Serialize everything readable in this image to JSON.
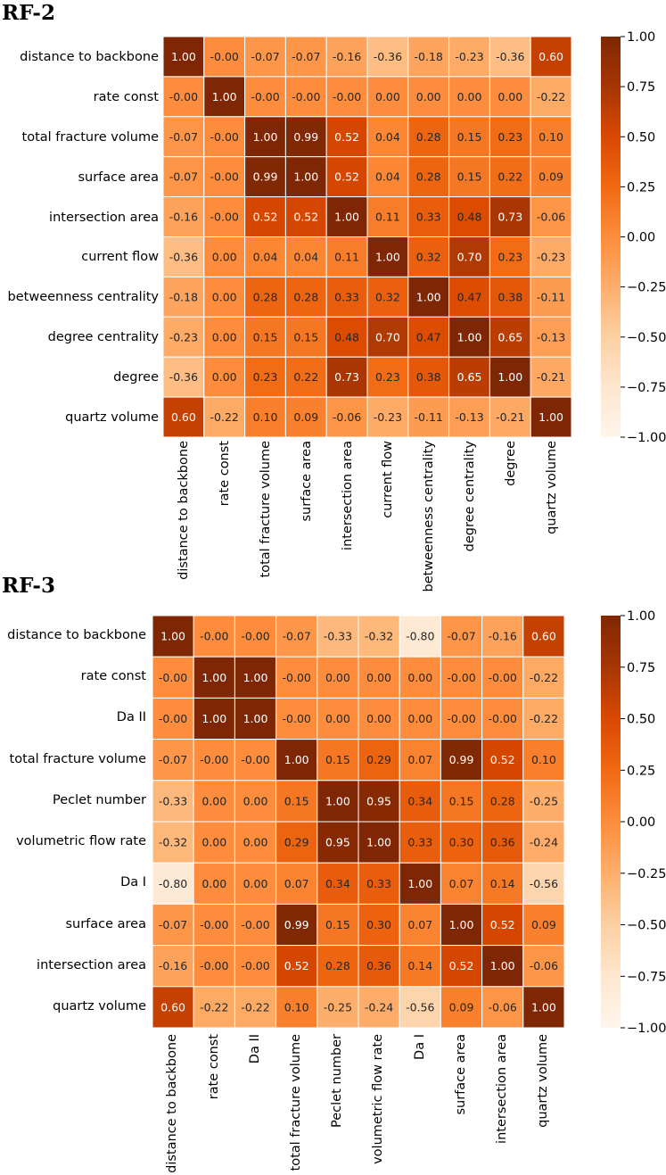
{
  "chart_data": [
    {
      "type": "heatmap",
      "title": "RF-2",
      "labels": [
        "distance to backbone",
        "rate const",
        "total fracture volume",
        "surface area",
        "intersection area",
        "current flow",
        "betweenness centrality",
        "degree centrality",
        "degree",
        "quartz volume"
      ],
      "values": [
        [
          1.0,
          -0.0,
          -0.07,
          -0.07,
          -0.16,
          -0.36,
          -0.18,
          -0.23,
          -0.36,
          0.6
        ],
        [
          -0.0,
          1.0,
          -0.0,
          -0.0,
          -0.0,
          0.0,
          0.0,
          0.0,
          0.0,
          -0.22
        ],
        [
          -0.07,
          -0.0,
          1.0,
          0.99,
          0.52,
          0.04,
          0.28,
          0.15,
          0.23,
          0.1
        ],
        [
          -0.07,
          -0.0,
          0.99,
          1.0,
          0.52,
          0.04,
          0.28,
          0.15,
          0.22,
          0.09
        ],
        [
          -0.16,
          -0.0,
          0.52,
          0.52,
          1.0,
          0.11,
          0.33,
          0.48,
          0.73,
          -0.06
        ],
        [
          -0.36,
          0.0,
          0.04,
          0.04,
          0.11,
          1.0,
          0.32,
          0.7,
          0.23,
          -0.23
        ],
        [
          -0.18,
          0.0,
          0.28,
          0.28,
          0.33,
          0.32,
          1.0,
          0.47,
          0.38,
          -0.11
        ],
        [
          -0.23,
          0.0,
          0.15,
          0.15,
          0.48,
          0.7,
          0.47,
          1.0,
          0.65,
          -0.13
        ],
        [
          -0.36,
          0.0,
          0.23,
          0.22,
          0.73,
          0.23,
          0.38,
          0.65,
          1.0,
          -0.21
        ],
        [
          0.6,
          -0.22,
          0.1,
          0.09,
          -0.06,
          -0.23,
          -0.11,
          -0.13,
          -0.21,
          1.0
        ]
      ],
      "display": [
        [
          "1.00",
          "-0.00",
          "-0.07",
          "-0.07",
          "-0.16",
          "-0.36",
          "-0.18",
          "-0.23",
          "-0.36",
          "0.60"
        ],
        [
          "-0.00",
          "1.00",
          "-0.00",
          "-0.00",
          "-0.00",
          "0.00",
          "0.00",
          "0.00",
          "0.00",
          "-0.22"
        ],
        [
          "-0.07",
          "-0.00",
          "1.00",
          "0.99",
          "0.52",
          "0.04",
          "0.28",
          "0.15",
          "0.23",
          "0.10"
        ],
        [
          "-0.07",
          "-0.00",
          "0.99",
          "1.00",
          "0.52",
          "0.04",
          "0.28",
          "0.15",
          "0.22",
          "0.09"
        ],
        [
          "-0.16",
          "-0.00",
          "0.52",
          "0.52",
          "1.00",
          "0.11",
          "0.33",
          "0.48",
          "0.73",
          "-0.06"
        ],
        [
          "-0.36",
          "0.00",
          "0.04",
          "0.04",
          "0.11",
          "1.00",
          "0.32",
          "0.70",
          "0.23",
          "-0.23"
        ],
        [
          "-0.18",
          "0.00",
          "0.28",
          "0.28",
          "0.33",
          "0.32",
          "1.00",
          "0.47",
          "0.38",
          "-0.11"
        ],
        [
          "-0.23",
          "0.00",
          "0.15",
          "0.15",
          "0.48",
          "0.70",
          "0.47",
          "1.00",
          "0.65",
          "-0.13"
        ],
        [
          "-0.36",
          "0.00",
          "0.23",
          "0.22",
          "0.73",
          "0.23",
          "0.38",
          "0.65",
          "1.00",
          "-0.21"
        ],
        [
          "0.60",
          "-0.22",
          "0.10",
          "0.09",
          "-0.06",
          "-0.23",
          "-0.11",
          "-0.13",
          "-0.21",
          "1.00"
        ]
      ],
      "colorbar": {
        "range": [
          -1.0,
          1.0
        ],
        "ticks": [
          "1.00",
          "0.75",
          "0.50",
          "0.25",
          "0.00",
          "−0.25",
          "−0.50",
          "−0.75",
          "−1.00"
        ]
      }
    },
    {
      "type": "heatmap",
      "title": "RF-3",
      "labels": [
        "distance to backbone",
        "rate const",
        "Da II",
        "total fracture volume",
        "Peclet number",
        "volumetric flow rate",
        "Da I",
        "surface area",
        "intersection area",
        "quartz volume"
      ],
      "values": [
        [
          1.0,
          -0.0,
          -0.0,
          -0.07,
          -0.33,
          -0.32,
          -0.8,
          -0.07,
          -0.16,
          0.6
        ],
        [
          -0.0,
          1.0,
          1.0,
          -0.0,
          0.0,
          0.0,
          0.0,
          -0.0,
          -0.0,
          -0.22
        ],
        [
          -0.0,
          1.0,
          1.0,
          -0.0,
          0.0,
          0.0,
          0.0,
          -0.0,
          -0.0,
          -0.22
        ],
        [
          -0.07,
          -0.0,
          -0.0,
          1.0,
          0.15,
          0.29,
          0.07,
          0.99,
          0.52,
          0.1
        ],
        [
          -0.33,
          0.0,
          0.0,
          0.15,
          1.0,
          0.95,
          0.34,
          0.15,
          0.28,
          -0.25
        ],
        [
          -0.32,
          0.0,
          0.0,
          0.29,
          0.95,
          1.0,
          0.33,
          0.3,
          0.36,
          -0.24
        ],
        [
          -0.8,
          0.0,
          0.0,
          0.07,
          0.34,
          0.33,
          1.0,
          0.07,
          0.14,
          -0.56
        ],
        [
          -0.07,
          -0.0,
          -0.0,
          0.99,
          0.15,
          0.3,
          0.07,
          1.0,
          0.52,
          0.09
        ],
        [
          -0.16,
          -0.0,
          -0.0,
          0.52,
          0.28,
          0.36,
          0.14,
          0.52,
          1.0,
          -0.06
        ],
        [
          0.6,
          -0.22,
          -0.22,
          0.1,
          -0.25,
          -0.24,
          -0.56,
          0.09,
          -0.06,
          1.0
        ]
      ],
      "display": [
        [
          "1.00",
          "-0.00",
          "-0.00",
          "-0.07",
          "-0.33",
          "-0.32",
          "-0.80",
          "-0.07",
          "-0.16",
          "0.60"
        ],
        [
          "-0.00",
          "1.00",
          "1.00",
          "-0.00",
          "0.00",
          "0.00",
          "0.00",
          "-0.00",
          "-0.00",
          "-0.22"
        ],
        [
          "-0.00",
          "1.00",
          "1.00",
          "-0.00",
          "0.00",
          "0.00",
          "0.00",
          "-0.00",
          "-0.00",
          "-0.22"
        ],
        [
          "-0.07",
          "-0.00",
          "-0.00",
          "1.00",
          "0.15",
          "0.29",
          "0.07",
          "0.99",
          "0.52",
          "0.10"
        ],
        [
          "-0.33",
          "0.00",
          "0.00",
          "0.15",
          "1.00",
          "0.95",
          "0.34",
          "0.15",
          "0.28",
          "-0.25"
        ],
        [
          "-0.32",
          "0.00",
          "0.00",
          "0.29",
          "0.95",
          "1.00",
          "0.33",
          "0.30",
          "0.36",
          "-0.24"
        ],
        [
          "-0.80",
          "0.00",
          "0.00",
          "0.07",
          "0.34",
          "0.33",
          "1.00",
          "0.07",
          "0.14",
          "-0.56"
        ],
        [
          "-0.07",
          "-0.00",
          "-0.00",
          "0.99",
          "0.15",
          "0.30",
          "0.07",
          "1.00",
          "0.52",
          "0.09"
        ],
        [
          "-0.16",
          "-0.00",
          "-0.00",
          "0.52",
          "0.28",
          "0.36",
          "0.14",
          "0.52",
          "1.00",
          "-0.06"
        ],
        [
          "0.60",
          "-0.22",
          "-0.22",
          "0.10",
          "-0.25",
          "-0.24",
          "-0.56",
          "0.09",
          "-0.06",
          "1.00"
        ]
      ],
      "colorbar": {
        "range": [
          -1.0,
          1.0
        ],
        "ticks": [
          "1.00",
          "0.75",
          "0.50",
          "0.25",
          "0.00",
          "−0.25",
          "−0.50",
          "−0.75",
          "−1.00"
        ]
      }
    }
  ]
}
